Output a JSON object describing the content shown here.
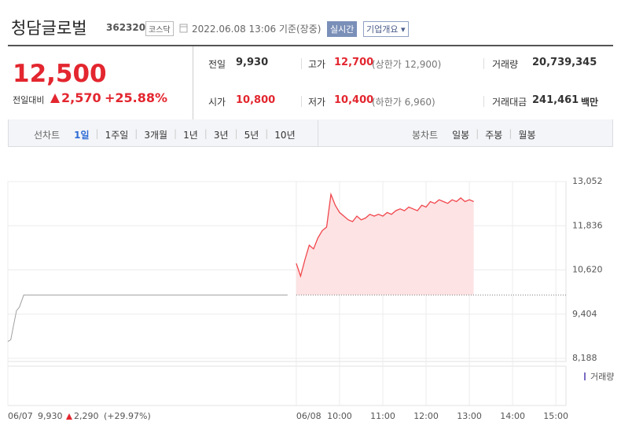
{
  "header": {
    "title": "청담글로벌",
    "code": "362320",
    "market": "코스닥",
    "timestamp": "2022.06.08 13:06 기준(장중)",
    "realtime_button": "실시간",
    "company_button": "기업개요"
  },
  "quote": {
    "price": "12,500",
    "change_label": "전일대비",
    "change": "2,570",
    "change_pct": "+25.88%",
    "stats": [
      {
        "label": "전일",
        "value": "9,930"
      },
      {
        "label": "고가",
        "value": "12,700",
        "note": "(상한가 12,900)"
      },
      {
        "label": "거래량",
        "value": "20,739,345"
      },
      {
        "label": "시가",
        "value": "10,800"
      },
      {
        "label": "저가",
        "value": "10,400",
        "note": "(하한가 6,960)"
      },
      {
        "label": "거래대금",
        "value": "241,461",
        "unit": "백만"
      }
    ]
  },
  "tabs": {
    "line_label": "선차트",
    "line_items": [
      "1일",
      "1주일",
      "3개월",
      "1년",
      "3년",
      "5년",
      "10년"
    ],
    "candle_label": "봉차트",
    "candle_items": [
      "일봉",
      "주봉",
      "월봉"
    ]
  },
  "chart_data": {
    "type": "line",
    "series": [
      {
        "name": "06/07",
        "color": "#a0a0a0",
        "x": [
          -400,
          -396,
          -392,
          -388,
          -384,
          -378,
          -12
        ],
        "values": [
          8650,
          8700,
          9100,
          9500,
          9600,
          9930,
          9930
        ]
      },
      {
        "name": "06/08",
        "color": "#f0454b",
        "x": [
          0,
          6,
          12,
          18,
          24,
          30,
          36,
          42,
          48,
          54,
          60,
          66,
          72,
          78,
          84,
          90,
          96,
          102,
          108,
          114,
          120,
          126,
          132,
          138,
          144,
          150,
          156,
          162,
          168,
          174,
          180,
          186,
          192,
          198,
          204,
          210,
          216,
          222,
          228,
          234,
          240,
          246
        ],
        "values": [
          10800,
          10450,
          10900,
          11300,
          11200,
          11500,
          11700,
          11800,
          12700,
          12400,
          12200,
          12100,
          12000,
          11950,
          12100,
          12000,
          12050,
          12150,
          12100,
          12150,
          12100,
          12200,
          12150,
          12250,
          12300,
          12250,
          12350,
          12300,
          12250,
          12400,
          12350,
          12500,
          12450,
          12550,
          12500,
          12450,
          12550,
          12500,
          12600,
          12500,
          12550,
          12500
        ]
      }
    ],
    "base": {
      "value": 9930,
      "label": "9,930"
    },
    "prev_change": "2,290",
    "prev_change_pct": "(+29.97%)",
    "volume_label": "거래량",
    "xlim": [
      -400,
      374
    ],
    "xticks": [
      {
        "value": -400,
        "label": "06/07"
      },
      {
        "value": 0,
        "label": "06/08"
      },
      {
        "value": 60,
        "label": "10:00"
      },
      {
        "value": 120,
        "label": "11:00"
      },
      {
        "value": 180,
        "label": "12:00"
      },
      {
        "value": 240,
        "label": "13:00"
      },
      {
        "value": 300,
        "label": "14:00"
      },
      {
        "value": 360,
        "label": "15:00"
      }
    ],
    "ylim": [
      8188,
      13052
    ],
    "yticks": [
      {
        "value": 13052,
        "label": "13,052"
      },
      {
        "value": 11836,
        "label": "11,836"
      },
      {
        "value": 10620,
        "label": "10,620"
      },
      {
        "value": 9404,
        "label": "9,404"
      },
      {
        "value": 8188,
        "label": "8,188"
      }
    ],
    "grid": true
  }
}
